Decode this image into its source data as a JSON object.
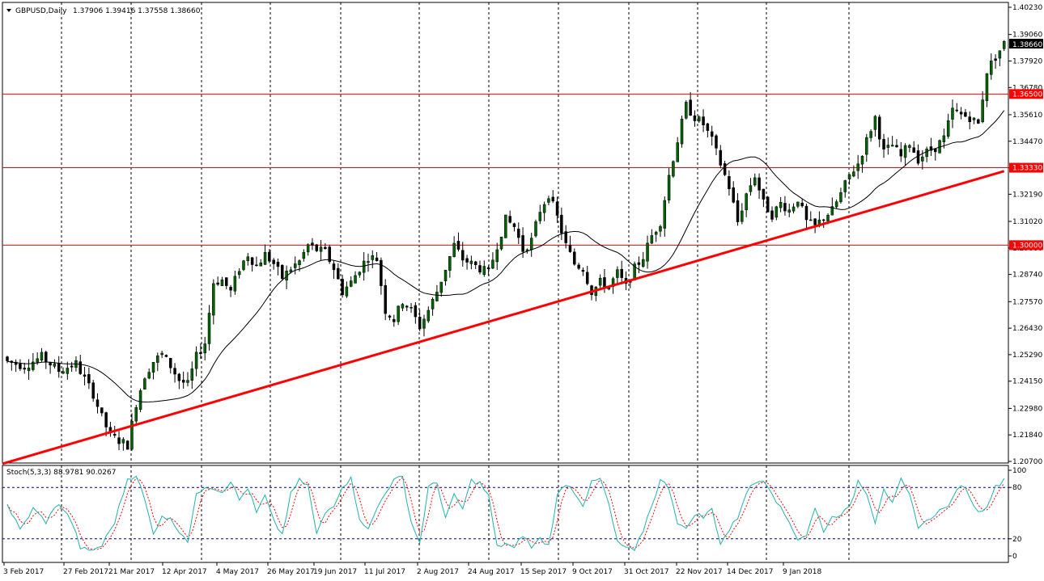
{
  "header": {
    "symbol": "GBPUSD,Daily",
    "ohlc": "1.37906 1.39416 1.37558 1.38660",
    "menu_icon": "triangle-down-icon"
  },
  "colors": {
    "background": "#ffffff",
    "bull": "#006400",
    "bear": "#000000",
    "support_line": "#ff0000",
    "stoch_main": "#20b2aa",
    "stoch_signal": "#ff0000",
    "level_line": "#000080"
  },
  "chart_data": [
    {
      "type": "candlestick",
      "title": "GBPUSD,Daily",
      "ylim": [
        1.207,
        1.4023
      ],
      "y_ticks": [
        "1.40230",
        "1.39060",
        "1.37920",
        "1.36780",
        "1.35610",
        "1.34470",
        "1.33330",
        "1.32190",
        "1.31020",
        "1.29880",
        "1.28740",
        "1.27570",
        "1.26430",
        "1.25290",
        "1.24150",
        "1.22980",
        "1.21840",
        "1.20700"
      ],
      "x_ticks": [
        "3 Feb 2017",
        "27 Feb 2017",
        "21 Mar 2017",
        "12 Apr 2017",
        "4 May 2017",
        "26 May 2017",
        "19 Jun 2017",
        "11 Jul 2017",
        "2 Aug 2017",
        "24 Aug 2017",
        "15 Sep 2017",
        "9 Oct 2017",
        "31 Oct 2017",
        "22 Nov 2017",
        "14 Dec 2017",
        "9 Jan 2018"
      ],
      "current_price": "1.38660",
      "horizontal_levels": [
        {
          "value": 1.365,
          "label": "1.36500"
        },
        {
          "value": 1.3333,
          "label": "1.33330"
        },
        {
          "value": 1.3,
          "label": "1.30000"
        }
      ],
      "trendline": [
        [
          0,
          1.206
        ],
        [
          232,
          1.3318
        ]
      ],
      "moving_average": "smooth line through closes",
      "anchors": [
        [
          0,
          1.25
        ],
        [
          4,
          1.248
        ],
        [
          8,
          1.252
        ],
        [
          12,
          1.246
        ],
        [
          16,
          1.249
        ],
        [
          20,
          1.236
        ],
        [
          22,
          1.226
        ],
        [
          24,
          1.218
        ],
        [
          26,
          1.216
        ],
        [
          28,
          1.214
        ],
        [
          30,
          1.232
        ],
        [
          32,
          1.244
        ],
        [
          34,
          1.25
        ],
        [
          36,
          1.253
        ],
        [
          38,
          1.248
        ],
        [
          40,
          1.242
        ],
        [
          42,
          1.24
        ],
        [
          44,
          1.252
        ],
        [
          46,
          1.258
        ],
        [
          48,
          1.284
        ],
        [
          50,
          1.285
        ],
        [
          52,
          1.28
        ],
        [
          54,
          1.29
        ],
        [
          56,
          1.296
        ],
        [
          58,
          1.291
        ],
        [
          60,
          1.296
        ],
        [
          62,
          1.292
        ],
        [
          64,
          1.286
        ],
        [
          66,
          1.29
        ],
        [
          68,
          1.293
        ],
        [
          70,
          1.3
        ],
        [
          72,
          1.298
        ],
        [
          74,
          1.297
        ],
        [
          76,
          1.29
        ],
        [
          78,
          1.28
        ],
        [
          80,
          1.284
        ],
        [
          82,
          1.29
        ],
        [
          84,
          1.295
        ],
        [
          86,
          1.294
        ],
        [
          88,
          1.272
        ],
        [
          90,
          1.268
        ],
        [
          92,
          1.276
        ],
        [
          94,
          1.272
        ],
        [
          96,
          1.265
        ],
        [
          98,
          1.272
        ],
        [
          100,
          1.28
        ],
        [
          102,
          1.29
        ],
        [
          104,
          1.3
        ],
        [
          106,
          1.294
        ],
        [
          108,
          1.292
        ],
        [
          110,
          1.29
        ],
        [
          112,
          1.288
        ],
        [
          114,
          1.3
        ],
        [
          116,
          1.311
        ],
        [
          118,
          1.308
        ],
        [
          120,
          1.298
        ],
        [
          122,
          1.302
        ],
        [
          124,
          1.315
        ],
        [
          126,
          1.322
        ],
        [
          128,
          1.312
        ],
        [
          130,
          1.3
        ],
        [
          132,
          1.292
        ],
        [
          134,
          1.29
        ],
        [
          136,
          1.28
        ],
        [
          138,
          1.284
        ],
        [
          140,
          1.282
        ],
        [
          142,
          1.288
        ],
        [
          144,
          1.282
        ],
        [
          146,
          1.29
        ],
        [
          148,
          1.295
        ],
        [
          150,
          1.304
        ],
        [
          152,
          1.31
        ],
        [
          154,
          1.33
        ],
        [
          156,
          1.345
        ],
        [
          158,
          1.36
        ],
        [
          160,
          1.355
        ],
        [
          162,
          1.352
        ],
        [
          164,
          1.345
        ],
        [
          166,
          1.335
        ],
        [
          168,
          1.325
        ],
        [
          170,
          1.31
        ],
        [
          172,
          1.322
        ],
        [
          174,
          1.33
        ],
        [
          176,
          1.318
        ],
        [
          178,
          1.313
        ],
        [
          180,
          1.318
        ],
        [
          182,
          1.315
        ],
        [
          184,
          1.32
        ],
        [
          186,
          1.31
        ],
        [
          188,
          1.308
        ],
        [
          190,
          1.312
        ],
        [
          192,
          1.315
        ],
        [
          194,
          1.322
        ],
        [
          196,
          1.33
        ],
        [
          198,
          1.335
        ],
        [
          200,
          1.345
        ],
        [
          202,
          1.355
        ],
        [
          204,
          1.34
        ],
        [
          206,
          1.343
        ],
        [
          208,
          1.338
        ],
        [
          210,
          1.344
        ],
        [
          212,
          1.337
        ],
        [
          214,
          1.34
        ],
        [
          216,
          1.342
        ],
        [
          218,
          1.346
        ],
        [
          220,
          1.358
        ],
        [
          222,
          1.356
        ],
        [
          224,
          1.355
        ],
        [
          226,
          1.352
        ],
        [
          228,
          1.375
        ],
        [
          230,
          1.381
        ],
        [
          232,
          1.3866
        ]
      ]
    },
    {
      "type": "line",
      "title": "Stoch(5,3,3) 88.9781 90.0267",
      "ylim": [
        0,
        100
      ],
      "y_ticks": [
        "100",
        "80",
        "20",
        "0"
      ],
      "levels": [
        80,
        20
      ],
      "series": [
        {
          "name": "main",
          "anchors": [
            [
              0,
              60
            ],
            [
              3,
              30
            ],
            [
              6,
              55
            ],
            [
              9,
              40
            ],
            [
              12,
              62
            ],
            [
              15,
              40
            ],
            [
              17,
              10
            ],
            [
              19,
              5
            ],
            [
              22,
              12
            ],
            [
              25,
              40
            ],
            [
              28,
              90
            ],
            [
              30,
              95
            ],
            [
              32,
              65
            ],
            [
              34,
              25
            ],
            [
              36,
              48
            ],
            [
              38,
              42
            ],
            [
              40,
              30
            ],
            [
              42,
              18
            ],
            [
              44,
              70
            ],
            [
              46,
              82
            ],
            [
              48,
              80
            ],
            [
              50,
              75
            ],
            [
              52,
              88
            ],
            [
              54,
              65
            ],
            [
              56,
              80
            ],
            [
              58,
              50
            ],
            [
              60,
              70
            ],
            [
              62,
              40
            ],
            [
              64,
              25
            ],
            [
              66,
              72
            ],
            [
              68,
              88
            ],
            [
              70,
              82
            ],
            [
              72,
              25
            ],
            [
              74,
              50
            ],
            [
              76,
              60
            ],
            [
              78,
              82
            ],
            [
              80,
              90
            ],
            [
              82,
              45
            ],
            [
              84,
              30
            ],
            [
              86,
              55
            ],
            [
              88,
              75
            ],
            [
              90,
              88
            ],
            [
              92,
              92
            ],
            [
              94,
              40
            ],
            [
              96,
              15
            ],
            [
              98,
              80
            ],
            [
              100,
              85
            ],
            [
              102,
              45
            ],
            [
              104,
              70
            ],
            [
              106,
              55
            ],
            [
              108,
              88
            ],
            [
              110,
              85
            ],
            [
              112,
              70
            ],
            [
              114,
              10
            ],
            [
              116,
              15
            ],
            [
              118,
              8
            ],
            [
              120,
              25
            ],
            [
              122,
              10
            ],
            [
              124,
              20
            ],
            [
              126,
              12
            ],
            [
              128,
              70
            ],
            [
              130,
              85
            ],
            [
              132,
              75
            ],
            [
              134,
              60
            ],
            [
              136,
              85
            ],
            [
              138,
              90
            ],
            [
              140,
              60
            ],
            [
              142,
              15
            ],
            [
              144,
              10
            ],
            [
              146,
              5
            ],
            [
              148,
              30
            ],
            [
              150,
              60
            ],
            [
              152,
              88
            ],
            [
              154,
              80
            ],
            [
              156,
              40
            ],
            [
              158,
              30
            ],
            [
              160,
              50
            ],
            [
              162,
              45
            ],
            [
              164,
              55
            ],
            [
              166,
              15
            ],
            [
              168,
              30
            ],
            [
              170,
              45
            ],
            [
              172,
              75
            ],
            [
              174,
              85
            ],
            [
              176,
              90
            ],
            [
              178,
              75
            ],
            [
              180,
              55
            ],
            [
              182,
              40
            ],
            [
              184,
              20
            ],
            [
              186,
              25
            ],
            [
              188,
              55
            ],
            [
              190,
              30
            ],
            [
              192,
              45
            ],
            [
              194,
              50
            ],
            [
              196,
              55
            ],
            [
              198,
              88
            ],
            [
              200,
              75
            ],
            [
              202,
              40
            ],
            [
              204,
              80
            ],
            [
              206,
              60
            ],
            [
              208,
              88
            ],
            [
              210,
              70
            ],
            [
              212,
              35
            ],
            [
              214,
              40
            ],
            [
              216,
              50
            ],
            [
              218,
              55
            ],
            [
              220,
              65
            ],
            [
              222,
              85
            ],
            [
              224,
              70
            ],
            [
              226,
              50
            ],
            [
              228,
              60
            ],
            [
              230,
              80
            ],
            [
              232,
              90
            ]
          ]
        },
        {
          "name": "signal",
          "anchors": []
        }
      ]
    }
  ]
}
